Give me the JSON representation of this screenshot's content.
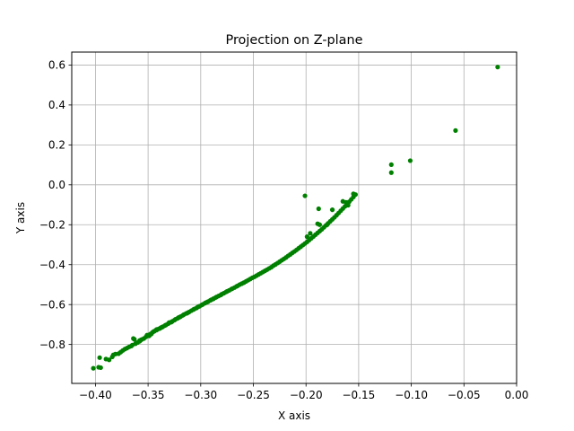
{
  "chart_data": {
    "type": "scatter",
    "title": "Projection on Z-plane",
    "xlabel": "X axis",
    "ylabel": "Y axis",
    "xlim": [
      -0.4225,
      0.0
    ],
    "ylim": [
      -0.995,
      0.665
    ],
    "xticks": [
      -0.4,
      -0.35,
      -0.3,
      -0.25,
      -0.2,
      -0.15,
      -0.1,
      -0.05,
      0.0
    ],
    "xtick_labels": [
      "−0.40",
      "−0.35",
      "−0.30",
      "−0.25",
      "−0.20",
      "−0.15",
      "−0.10",
      "−0.05",
      "0.00"
    ],
    "yticks": [
      -0.8,
      -0.6,
      -0.4,
      -0.2,
      0.0,
      0.2,
      0.4,
      0.6
    ],
    "ytick_labels": [
      "−0.8",
      "−0.6",
      "−0.4",
      "−0.2",
      "0.0",
      "0.2",
      "0.4",
      "0.6"
    ],
    "grid": true,
    "color": "#008000",
    "points": [
      [
        -0.402,
        -0.919
      ],
      [
        -0.397,
        -0.914
      ],
      [
        -0.395,
        -0.916
      ],
      [
        -0.396,
        -0.866
      ],
      [
        -0.39,
        -0.873
      ],
      [
        -0.387,
        -0.877
      ],
      [
        -0.384,
        -0.862
      ],
      [
        -0.383,
        -0.852
      ],
      [
        -0.381,
        -0.848
      ],
      [
        -0.378,
        -0.846
      ],
      [
        -0.376,
        -0.838
      ],
      [
        -0.374,
        -0.83
      ],
      [
        -0.372,
        -0.823
      ],
      [
        -0.37,
        -0.818
      ],
      [
        -0.368,
        -0.812
      ],
      [
        -0.366,
        -0.808
      ],
      [
        -0.365,
        -0.803
      ],
      [
        -0.364,
        -0.77
      ],
      [
        -0.362,
        -0.796
      ],
      [
        -0.36,
        -0.79
      ],
      [
        -0.358,
        -0.784
      ],
      [
        -0.357,
        -0.778
      ],
      [
        -0.356,
        -0.775
      ],
      [
        -0.354,
        -0.77
      ],
      [
        -0.352,
        -0.762
      ],
      [
        -0.351,
        -0.753
      ],
      [
        -0.35,
        -0.755
      ],
      [
        -0.348,
        -0.748
      ],
      [
        -0.346,
        -0.74
      ],
      [
        -0.345,
        -0.736
      ],
      [
        -0.344,
        -0.733
      ],
      [
        -0.342,
        -0.728
      ],
      [
        -0.341,
        -0.724
      ],
      [
        -0.339,
        -0.72
      ],
      [
        -0.338,
        -0.716
      ],
      [
        -0.336,
        -0.711
      ],
      [
        -0.334,
        -0.705
      ],
      [
        -0.333,
        -0.702
      ],
      [
        -0.331,
        -0.696
      ],
      [
        -0.33,
        -0.692
      ],
      [
        -0.328,
        -0.688
      ],
      [
        -0.327,
        -0.684
      ],
      [
        -0.325,
        -0.678
      ],
      [
        -0.324,
        -0.674
      ],
      [
        -0.322,
        -0.669
      ],
      [
        -0.32,
        -0.663
      ],
      [
        -0.319,
        -0.66
      ],
      [
        -0.317,
        -0.654
      ],
      [
        -0.316,
        -0.65
      ],
      [
        -0.314,
        -0.645
      ],
      [
        -0.312,
        -0.64
      ],
      [
        -0.311,
        -0.637
      ],
      [
        -0.309,
        -0.631
      ],
      [
        -0.307,
        -0.625
      ],
      [
        -0.306,
        -0.622
      ],
      [
        -0.304,
        -0.617
      ],
      [
        -0.303,
        -0.613
      ],
      [
        -0.301,
        -0.608
      ],
      [
        -0.299,
        -0.602
      ],
      [
        -0.298,
        -0.599
      ],
      [
        -0.296,
        -0.593
      ],
      [
        -0.294,
        -0.588
      ],
      [
        -0.293,
        -0.585
      ],
      [
        -0.291,
        -0.579
      ],
      [
        -0.29,
        -0.576
      ],
      [
        -0.288,
        -0.571
      ],
      [
        -0.286,
        -0.565
      ],
      [
        -0.285,
        -0.562
      ],
      [
        -0.283,
        -0.557
      ],
      [
        -0.281,
        -0.552
      ],
      [
        -0.28,
        -0.548
      ],
      [
        -0.278,
        -0.543
      ],
      [
        -0.276,
        -0.537
      ],
      [
        -0.275,
        -0.534
      ],
      [
        -0.273,
        -0.529
      ],
      [
        -0.271,
        -0.523
      ],
      [
        -0.27,
        -0.52
      ],
      [
        -0.268,
        -0.515
      ],
      [
        -0.266,
        -0.509
      ],
      [
        -0.265,
        -0.506
      ],
      [
        -0.263,
        -0.5
      ],
      [
        -0.261,
        -0.495
      ],
      [
        -0.259,
        -0.49
      ],
      [
        -0.257,
        -0.484
      ],
      [
        -0.255,
        -0.478
      ],
      [
        -0.253,
        -0.472
      ],
      [
        -0.251,
        -0.466
      ],
      [
        -0.249,
        -0.461
      ],
      [
        -0.247,
        -0.455
      ],
      [
        -0.245,
        -0.449
      ],
      [
        -0.243,
        -0.443
      ],
      [
        -0.241,
        -0.437
      ],
      [
        -0.239,
        -0.431
      ],
      [
        -0.237,
        -0.425
      ],
      [
        -0.235,
        -0.419
      ],
      [
        -0.233,
        -0.413
      ],
      [
        -0.231,
        -0.405
      ],
      [
        -0.229,
        -0.399
      ],
      [
        -0.227,
        -0.392
      ],
      [
        -0.225,
        -0.385
      ],
      [
        -0.223,
        -0.378
      ],
      [
        -0.221,
        -0.371
      ],
      [
        -0.219,
        -0.364
      ],
      [
        -0.217,
        -0.356
      ],
      [
        -0.215,
        -0.349
      ],
      [
        -0.213,
        -0.341
      ],
      [
        -0.211,
        -0.334
      ],
      [
        -0.209,
        -0.326
      ],
      [
        -0.207,
        -0.318
      ],
      [
        -0.205,
        -0.31
      ],
      [
        -0.203,
        -0.302
      ],
      [
        -0.201,
        -0.294
      ],
      [
        -0.199,
        -0.286
      ],
      [
        -0.197,
        -0.277
      ],
      [
        -0.195,
        -0.268
      ],
      [
        -0.193,
        -0.259
      ],
      [
        -0.191,
        -0.25
      ],
      [
        -0.189,
        -0.241
      ],
      [
        -0.187,
        -0.232
      ],
      [
        -0.185,
        -0.223
      ],
      [
        -0.183,
        -0.213
      ],
      [
        -0.181,
        -0.203
      ],
      [
        -0.179,
        -0.193
      ],
      [
        -0.177,
        -0.183
      ],
      [
        -0.175,
        -0.173
      ],
      [
        -0.173,
        -0.163
      ],
      [
        -0.171,
        -0.152
      ],
      [
        -0.169,
        -0.141
      ],
      [
        -0.167,
        -0.13
      ],
      [
        -0.165,
        -0.119
      ],
      [
        -0.163,
        -0.108
      ],
      [
        -0.161,
        -0.097
      ],
      [
        -0.159,
        -0.085
      ],
      [
        -0.157,
        -0.073
      ],
      [
        -0.155,
        -0.061
      ],
      [
        -0.153,
        -0.049
      ],
      [
        -0.155,
        -0.045
      ],
      [
        -0.16,
        -0.102
      ],
      [
        -0.162,
        -0.088
      ],
      [
        -0.165,
        -0.083
      ],
      [
        -0.175,
        -0.125
      ],
      [
        -0.18,
        -0.2
      ],
      [
        -0.187,
        -0.2
      ],
      [
        -0.188,
        -0.12
      ],
      [
        -0.189,
        -0.195
      ],
      [
        -0.201,
        -0.055
      ],
      [
        -0.196,
        -0.243
      ],
      [
        -0.199,
        -0.26
      ],
      [
        -0.342,
        -0.725
      ],
      [
        -0.349,
        -0.757
      ],
      [
        -0.358,
        -0.78
      ],
      [
        -0.363,
        -0.774
      ],
      [
        -0.347,
        -0.748
      ],
      [
        -0.337,
        -0.714
      ],
      [
        -0.33,
        -0.69
      ],
      [
        -0.321,
        -0.665
      ],
      [
        -0.313,
        -0.643
      ],
      [
        -0.302,
        -0.61
      ],
      [
        -0.295,
        -0.59
      ],
      [
        -0.288,
        -0.571
      ],
      [
        -0.119,
        0.101
      ],
      [
        -0.119,
        0.061
      ],
      [
        -0.101,
        0.121
      ],
      [
        -0.058,
        0.272
      ],
      [
        -0.018,
        0.59
      ]
    ]
  }
}
